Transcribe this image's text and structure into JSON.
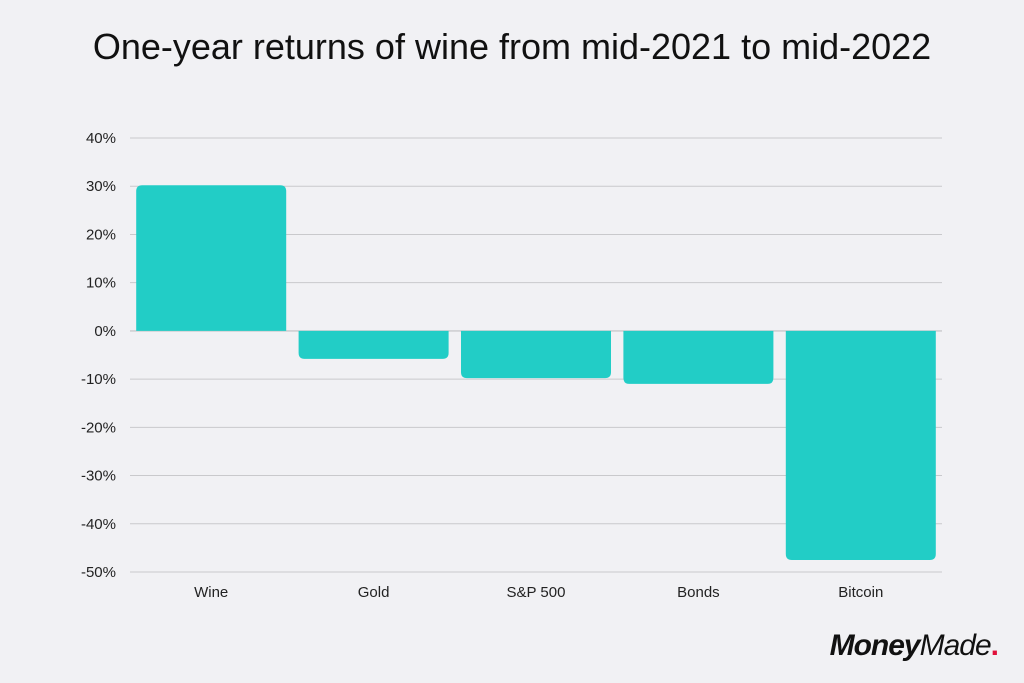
{
  "chart_data": {
    "type": "bar",
    "title": "One-year returns of wine from mid-2021 to mid-2022",
    "categories": [
      "Wine",
      "Gold",
      "S&P 500",
      "Bonds",
      "Bitcoin"
    ],
    "values": [
      30.2,
      -5.8,
      -9.8,
      -11.0,
      -47.5
    ],
    "ylim": [
      -50,
      40
    ],
    "yticks": [
      40,
      30,
      20,
      10,
      0,
      -10,
      -20,
      -30,
      -40,
      -50
    ],
    "ytick_labels": [
      "40%",
      "30%",
      "20%",
      "10%",
      "0%",
      "-10%",
      "-20%",
      "-30%",
      "-40%",
      "-50%"
    ],
    "grid": true,
    "bar_color": "#22cdc6",
    "grid_color": "#c9c9cc"
  },
  "logo": {
    "part1": "Money",
    "part2": "Made",
    "dot": "."
  }
}
